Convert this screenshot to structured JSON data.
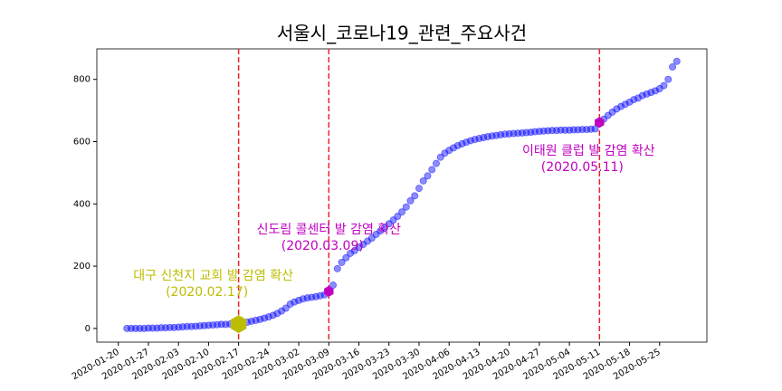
{
  "chart_data": {
    "type": "scatter",
    "title": "서울시_코로나19_관련_주요사건",
    "x": [
      "2020-01-22",
      "2020-01-23",
      "2020-01-24",
      "2020-01-25",
      "2020-01-26",
      "2020-01-27",
      "2020-01-28",
      "2020-01-29",
      "2020-01-30",
      "2020-01-31",
      "2020-02-01",
      "2020-02-02",
      "2020-02-03",
      "2020-02-04",
      "2020-02-05",
      "2020-02-06",
      "2020-02-07",
      "2020-02-08",
      "2020-02-09",
      "2020-02-10",
      "2020-02-11",
      "2020-02-12",
      "2020-02-13",
      "2020-02-14",
      "2020-02-15",
      "2020-02-16",
      "2020-02-17",
      "2020-02-18",
      "2020-02-19",
      "2020-02-20",
      "2020-02-21",
      "2020-02-22",
      "2020-02-23",
      "2020-02-24",
      "2020-02-25",
      "2020-02-26",
      "2020-02-27",
      "2020-02-28",
      "2020-02-29",
      "2020-03-01",
      "2020-03-02",
      "2020-03-03",
      "2020-03-04",
      "2020-03-05",
      "2020-03-06",
      "2020-03-07",
      "2020-03-08",
      "2020-03-09",
      "2020-03-10",
      "2020-03-11",
      "2020-03-12",
      "2020-03-13",
      "2020-03-14",
      "2020-03-15",
      "2020-03-16",
      "2020-03-17",
      "2020-03-18",
      "2020-03-19",
      "2020-03-20",
      "2020-03-21",
      "2020-03-22",
      "2020-03-23",
      "2020-03-24",
      "2020-03-25",
      "2020-03-26",
      "2020-03-27",
      "2020-03-28",
      "2020-03-29",
      "2020-03-30",
      "2020-03-31",
      "2020-04-01",
      "2020-04-02",
      "2020-04-03",
      "2020-04-04",
      "2020-04-05",
      "2020-04-06",
      "2020-04-07",
      "2020-04-08",
      "2020-04-09",
      "2020-04-10",
      "2020-04-11",
      "2020-04-12",
      "2020-04-13",
      "2020-04-14",
      "2020-04-15",
      "2020-04-16",
      "2020-04-17",
      "2020-04-18",
      "2020-04-19",
      "2020-04-20",
      "2020-04-21",
      "2020-04-22",
      "2020-04-23",
      "2020-04-24",
      "2020-04-25",
      "2020-04-26",
      "2020-04-27",
      "2020-04-28",
      "2020-04-29",
      "2020-04-30",
      "2020-05-01",
      "2020-05-02",
      "2020-05-03",
      "2020-05-04",
      "2020-05-05",
      "2020-05-06",
      "2020-05-07",
      "2020-05-08",
      "2020-05-09",
      "2020-05-10",
      "2020-05-11",
      "2020-05-12",
      "2020-05-13",
      "2020-05-14",
      "2020-05-15",
      "2020-05-16",
      "2020-05-17",
      "2020-05-18",
      "2020-05-19",
      "2020-05-20",
      "2020-05-21",
      "2020-05-22",
      "2020-05-23",
      "2020-05-24",
      "2020-05-25",
      "2020-05-26",
      "2020-05-27",
      "2020-05-28",
      "2020-05-29"
    ],
    "values": [
      0,
      0,
      0,
      0,
      0,
      1,
      1,
      1,
      2,
      2,
      3,
      3,
      4,
      5,
      6,
      6,
      7,
      8,
      9,
      10,
      11,
      12,
      13,
      13,
      14,
      14,
      14,
      17,
      20,
      23,
      26,
      29,
      33,
      37,
      42,
      48,
      56,
      65,
      78,
      85,
      90,
      95,
      98,
      100,
      102,
      105,
      108,
      119,
      139,
      192,
      212,
      227,
      241,
      250,
      261,
      270,
      280,
      290,
      302,
      313,
      323,
      336,
      348,
      360,
      374,
      390,
      410,
      426,
      450,
      474,
      490,
      510,
      530,
      550,
      563,
      572,
      580,
      587,
      593,
      598,
      603,
      607,
      610,
      613,
      616,
      618,
      620,
      622,
      624,
      625,
      626,
      627,
      628,
      629,
      630,
      632,
      633,
      634,
      635,
      636,
      636,
      637,
      637,
      637,
      638,
      638,
      639,
      639,
      640,
      641,
      662,
      672,
      684,
      695,
      705,
      713,
      720,
      727,
      735,
      740,
      748,
      753,
      758,
      763,
      770,
      780,
      800,
      840,
      858
    ],
    "color": "#0000ff",
    "xlim": [
      "2020-01-15",
      "2020-06-05"
    ],
    "xticks": [
      "2020-01-20",
      "2020-01-27",
      "2020-02-03",
      "2020-02-10",
      "2020-02-17",
      "2020-02-24",
      "2020-03-02",
      "2020-03-09",
      "2020-03-16",
      "2020-03-23",
      "2020-03-30",
      "2020-04-06",
      "2020-04-13",
      "2020-04-20",
      "2020-04-27",
      "2020-05-04",
      "2020-05-11",
      "2020-05-18",
      "2020-05-25"
    ],
    "ylim": [
      -44,
      898
    ],
    "yticks": [
      0,
      200,
      400,
      600,
      800
    ],
    "annotations": [
      {
        "x": "2020-02-17",
        "text": "대구 신천지 교회 발 감염 확산",
        "date_label": "(2020.02.17)",
        "color": "#bcbd00"
      },
      {
        "x": "2020-03-09",
        "text": "신도림 콜센터 발 감염 확산",
        "date_label": "(2020.03.09)",
        "color": "#c000c0"
      },
      {
        "x": "2020-05-11",
        "text": "이태원 클럽 발 감염 확산",
        "date_label": "(2020.05.11)",
        "color": "#c000c0"
      }
    ]
  }
}
